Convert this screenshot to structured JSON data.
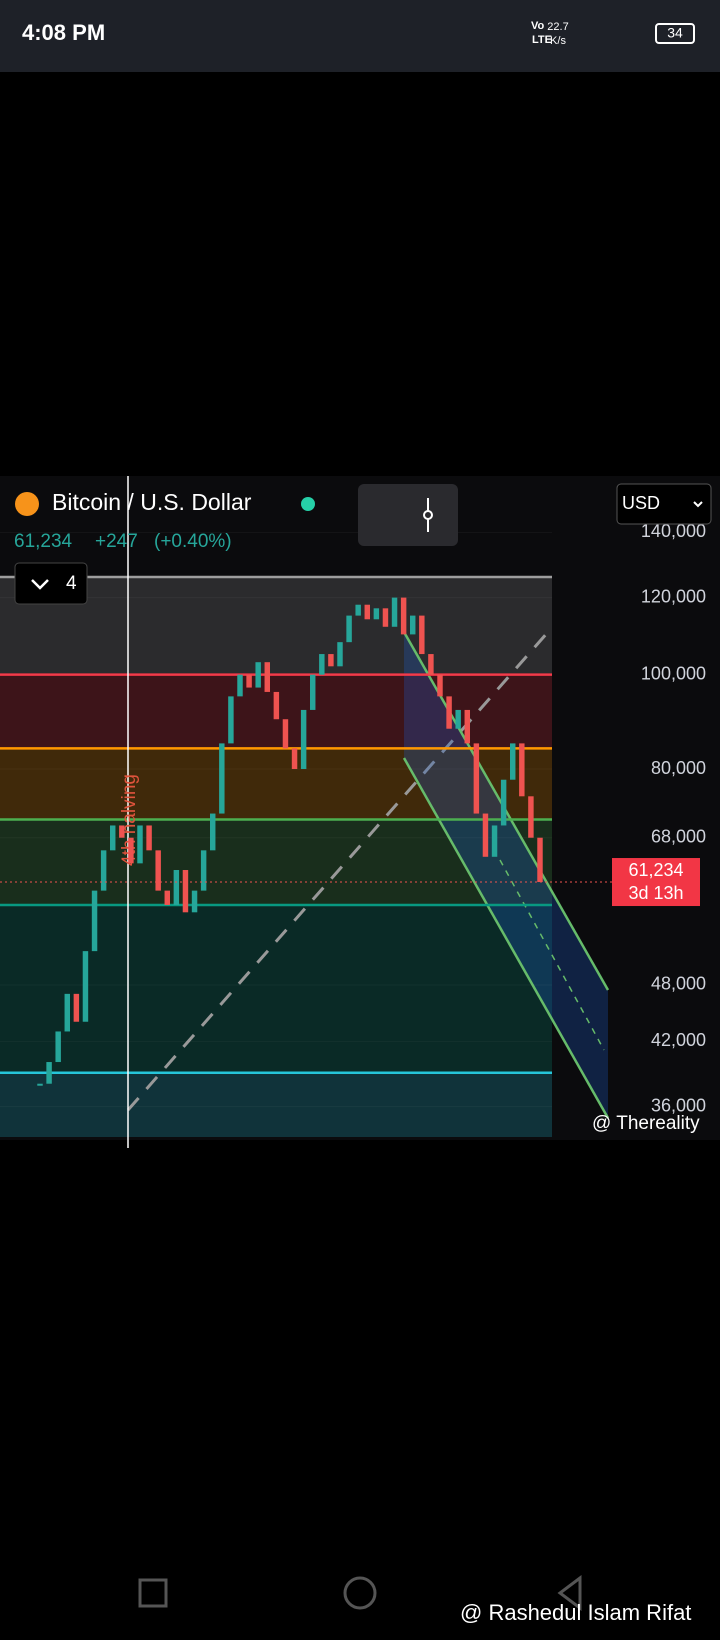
{
  "status_bar": {
    "time": "4:08 PM",
    "net_speed": "22.7",
    "net_unit": "K/s",
    "network_top": "Vo",
    "network_bottom": "LTE",
    "battery": "34"
  },
  "chart_data": {
    "type": "candle",
    "title": "Bitcoin / U.S. Dollar",
    "price": "61,234",
    "change": "+247",
    "change_pct": "(+0.40%)",
    "indicator_count": "4",
    "currency": "USD",
    "annotation": "4th halving",
    "price_label": "61,234",
    "countdown": "3d 13h",
    "credit": "@ Thereality",
    "log_scale": true,
    "up_color": "#26a69a",
    "down_color": "#ef5350",
    "values": [
      38000,
      40000,
      43000,
      47000,
      44000,
      52000,
      60000,
      66000,
      70000,
      68000,
      64000,
      70000,
      66000,
      60000,
      58000,
      63000,
      57000,
      60000,
      66000,
      72000,
      85000,
      95000,
      100000,
      97000,
      103000,
      96000,
      90000,
      84000,
      80000,
      92000,
      100000,
      105000,
      102000,
      108000,
      115000,
      118000,
      114000,
      117000,
      112000,
      120000,
      110000,
      115000,
      105000,
      100000,
      95000,
      88000,
      92000,
      85000,
      72000,
      65000,
      70000,
      78000,
      85000,
      75000,
      68000,
      61234
    ],
    "ylim": [
      33500,
      160000
    ],
    "yticks": [
      {
        "value": 140000,
        "label": "140,000"
      },
      {
        "value": 120000,
        "label": "120,000"
      },
      {
        "value": 100000,
        "label": "100,000"
      },
      {
        "value": 80000,
        "label": "80,000"
      },
      {
        "value": 68000,
        "label": "68,000"
      },
      {
        "value": 48000,
        "label": "48,000"
      },
      {
        "value": 42000,
        "label": "42,000"
      },
      {
        "value": 36000,
        "label": "36,000"
      }
    ],
    "levels": [
      {
        "value": 126000,
        "color": "#9e9e9e"
      },
      {
        "value": 100000,
        "color": "#f23645"
      },
      {
        "value": 84000,
        "color": "#ff9800"
      },
      {
        "value": 71000,
        "color": "#4caf50"
      },
      {
        "value": 58000,
        "color": "#089981"
      },
      {
        "value": 39000,
        "color": "#26c6da"
      }
    ]
  },
  "footer": {
    "watermark": "@ Rashedul Islam Rifat"
  }
}
